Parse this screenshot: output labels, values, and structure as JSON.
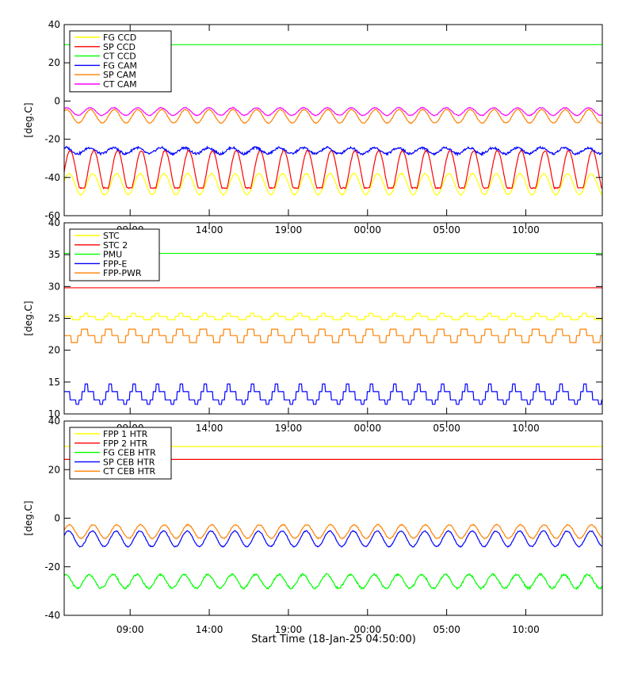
{
  "x_axis": {
    "tick_labels": [
      "09:00",
      "14:00",
      "19:00",
      "00:00",
      "05:00",
      "10:00"
    ],
    "title": "Start Time (18-Jan-25 04:50:00)"
  },
  "chart_data": [
    {
      "type": "line",
      "ylabel": "[deg.C]",
      "ylim": [
        -60,
        40
      ],
      "yticks": [
        40,
        20,
        0,
        -20,
        -40,
        -60
      ],
      "xrange_hours": [
        0,
        34
      ],
      "legend_position": "top-left",
      "series": [
        {
          "name": "FG CCD",
          "color": "#ffff00",
          "kind": "sine",
          "mean": -43.5,
          "amp": 5.5,
          "period": 1.5,
          "phase": 0.3,
          "noise": 0.3
        },
        {
          "name": "SP CCD",
          "color": "#ff0000",
          "kind": "clipsine",
          "mean": -37,
          "amp": 11,
          "floor": -45.5,
          "period": 1.5,
          "phase": 0,
          "noise": 0.3
        },
        {
          "name": "CT CCD",
          "color": "#00ff00",
          "kind": "flat",
          "value": 29.5
        },
        {
          "name": "FG CAM",
          "color": "#0000ff",
          "kind": "sine",
          "mean": -26,
          "amp": 1.6,
          "period": 1.5,
          "phase": 1.1,
          "noise": 0.6
        },
        {
          "name": "SP CAM",
          "color": "#ff8000",
          "kind": "sine",
          "mean": -8,
          "amp": 3.5,
          "period": 1.5,
          "phase": 0.9,
          "noise": 0.2
        },
        {
          "name": "CT CAM",
          "color": "#ff00ff",
          "kind": "sine",
          "mean": -5.5,
          "amp": 2,
          "period": 1.5,
          "phase": 1.0,
          "noise": 0.2
        }
      ]
    },
    {
      "type": "line",
      "ylabel": "[deg.C]",
      "ylim": [
        10,
        40
      ],
      "yticks": [
        40,
        35,
        30,
        25,
        20,
        15,
        10
      ],
      "xrange_hours": [
        0,
        34
      ],
      "legend_position": "top-left",
      "series": [
        {
          "name": "STC",
          "color": "#ffff00",
          "kind": "step",
          "levels": [
            25.3,
            25.3,
            24.8,
            24.8,
            25.3,
            25.8
          ],
          "period": 1.5
        },
        {
          "name": "STC 2",
          "color": "#ff0000",
          "kind": "flat",
          "value": 29.8
        },
        {
          "name": "PMU",
          "color": "#00ff00",
          "kind": "flat",
          "value": 35.2
        },
        {
          "name": "FPP-E",
          "color": "#0000ff",
          "kind": "step",
          "levels": [
            13.5,
            13.5,
            12.2,
            12.2,
            11.5,
            12.2,
            13.5,
            14.7
          ],
          "period": 1.5
        },
        {
          "name": "FPP-PWR",
          "color": "#ff8000",
          "kind": "step",
          "levels": [
            22.3,
            22.3,
            21.2,
            21.2,
            22.3,
            23.3,
            23.3
          ],
          "period": 1.5
        }
      ]
    },
    {
      "type": "line",
      "ylabel": "[deg.C]",
      "ylim": [
        -40,
        40
      ],
      "yticks": [
        40,
        20,
        0,
        -20,
        -40
      ],
      "xrange_hours": [
        0,
        34
      ],
      "legend_position": "top-left",
      "series": [
        {
          "name": "FPP 1 HTR",
          "color": "#ffff00",
          "kind": "flat",
          "value": 29.5
        },
        {
          "name": "FPP 2 HTR",
          "color": "#ff0000",
          "kind": "flat",
          "value": 24.2
        },
        {
          "name": "FG CEB HTR",
          "color": "#00ff00",
          "kind": "sine",
          "mean": -26,
          "amp": 2.8,
          "period": 1.5,
          "phase": 1.2,
          "noise": 0.4
        },
        {
          "name": "SP CEB HTR",
          "color": "#0000ff",
          "kind": "sine",
          "mean": -8.5,
          "amp": 3.2,
          "period": 1.5,
          "phase": 0.4,
          "noise": 0.2
        },
        {
          "name": "CT CEB HTR",
          "color": "#ff8000",
          "kind": "sine",
          "mean": -5.5,
          "amp": 2.8,
          "period": 1.5,
          "phase": 0.2,
          "noise": 0.2
        }
      ]
    }
  ]
}
